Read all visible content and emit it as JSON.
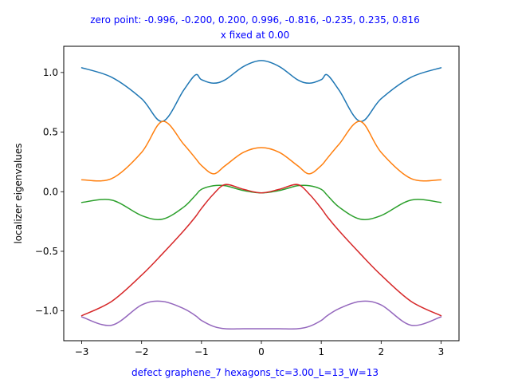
{
  "chart_data": {
    "type": "line",
    "title": "zero point: -0.996, -0.200, 0.200, 0.996, -0.816, -0.235, 0.235, 0.816",
    "subtitle": "x fixed at 0.00",
    "xlabel": "defect graphene_7 hexagons_tc=3.00_L=13_W=13",
    "ylabel": "localizer eigenvalues",
    "xlim": [
      -3.3,
      3.3
    ],
    "ylim": [
      -1.25,
      1.22
    ],
    "xticks": [
      -3,
      -2,
      -1,
      0,
      1,
      2,
      3
    ],
    "xtick_labels": [
      "−3",
      "−2",
      "−1",
      "0",
      "1",
      "2",
      "3"
    ],
    "yticks": [
      -1.0,
      -0.5,
      0.0,
      0.5,
      1.0
    ],
    "ytick_labels": [
      "−1.0",
      "−0.5",
      "0.0",
      "0.5",
      "1.0"
    ],
    "grid": false,
    "legend": "none",
    "x": [
      -3.0,
      -2.5,
      -2.0,
      -1.65,
      -1.3,
      -1.1,
      -1.0,
      -0.8,
      -0.6,
      -0.3,
      0.0,
      0.3,
      0.6,
      0.8,
      1.0,
      1.1,
      1.3,
      1.65,
      2.0,
      2.5,
      3.0
    ],
    "series": [
      {
        "color": "#1f77b4",
        "values": [
          1.04,
          0.96,
          0.78,
          0.59,
          0.85,
          0.98,
          0.94,
          0.91,
          0.94,
          1.05,
          1.1,
          1.05,
          0.94,
          0.91,
          0.94,
          0.98,
          0.85,
          0.59,
          0.78,
          0.96,
          1.04
        ]
      },
      {
        "color": "#ff7f0e",
        "values": [
          0.1,
          0.11,
          0.33,
          0.59,
          0.4,
          0.28,
          0.22,
          0.15,
          0.22,
          0.33,
          0.37,
          0.33,
          0.22,
          0.15,
          0.22,
          0.28,
          0.4,
          0.59,
          0.33,
          0.11,
          0.1
        ]
      },
      {
        "color": "#2ca02c",
        "values": [
          -0.09,
          -0.07,
          -0.2,
          -0.23,
          -0.13,
          -0.03,
          0.02,
          0.05,
          0.05,
          0.01,
          -0.01,
          0.01,
          0.05,
          0.05,
          0.02,
          -0.03,
          -0.13,
          -0.23,
          -0.2,
          -0.07,
          -0.09
        ]
      },
      {
        "color": "#d62728",
        "values": [
          -1.04,
          -0.92,
          -0.7,
          -0.52,
          -0.33,
          -0.21,
          -0.14,
          -0.02,
          0.06,
          0.02,
          -0.01,
          0.02,
          0.06,
          -0.02,
          -0.14,
          -0.21,
          -0.33,
          -0.52,
          -0.7,
          -0.92,
          -1.04
        ]
      },
      {
        "color": "#9467bd",
        "values": [
          -1.05,
          -1.12,
          -0.95,
          -0.92,
          -0.98,
          -1.04,
          -1.08,
          -1.13,
          -1.15,
          -1.15,
          -1.15,
          -1.15,
          -1.15,
          -1.13,
          -1.08,
          -1.04,
          -0.98,
          -0.92,
          -0.95,
          -1.12,
          -1.05
        ]
      }
    ]
  }
}
